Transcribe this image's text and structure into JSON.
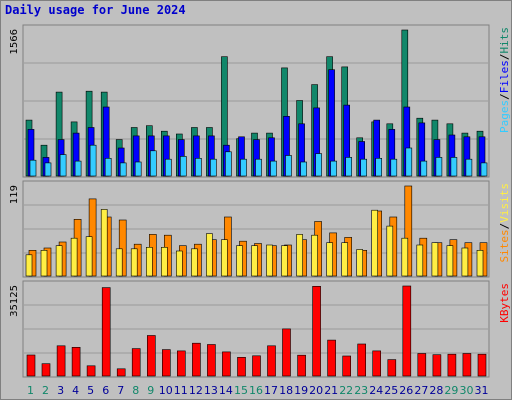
{
  "title": "Daily usage for June 2024",
  "colors": {
    "pages": "#33ccff",
    "files": "#0000ff",
    "hits": "#11876a",
    "visits": "#ffee44",
    "sites": "#ff8800",
    "kbytes": "#ff0000",
    "day_weekday": "#000099",
    "day_weekend": "#11876a",
    "plot_bg": "#c0c0c0"
  },
  "chart_data": [
    {
      "type": "bar",
      "title": "Hits / Files / Pages",
      "categories": [
        "1",
        "2",
        "3",
        "4",
        "5",
        "6",
        "7",
        "8",
        "9",
        "10",
        "11",
        "12",
        "13",
        "14",
        "15",
        "16",
        "17",
        "18",
        "19",
        "20",
        "21",
        "22",
        "23",
        "24",
        "25",
        "26",
        "27",
        "28",
        "29",
        "30",
        "31"
      ],
      "ymax_label": "1566",
      "ylim": [
        0,
        1566
      ],
      "series": [
        {
          "name": "Hits",
          "color": "#11876a",
          "values": [
            600,
            330,
            900,
            580,
            910,
            900,
            390,
            520,
            540,
            480,
            450,
            520,
            520,
            1280,
            400,
            460,
            460,
            1160,
            810,
            980,
            1280,
            1170,
            410,
            580,
            560,
            1566,
            620,
            600,
            560,
            460,
            480
          ]
        },
        {
          "name": "Files",
          "color": "#0000ff",
          "values": [
            500,
            200,
            390,
            460,
            520,
            740,
            300,
            430,
            430,
            430,
            390,
            430,
            430,
            330,
            420,
            390,
            410,
            640,
            560,
            730,
            1140,
            760,
            370,
            600,
            500,
            740,
            570,
            390,
            440,
            420,
            420
          ]
        },
        {
          "name": "Pages",
          "color": "#33ccff",
          "values": [
            170,
            140,
            230,
            160,
            330,
            190,
            140,
            150,
            270,
            180,
            210,
            190,
            180,
            260,
            180,
            180,
            160,
            220,
            150,
            240,
            160,
            200,
            180,
            190,
            180,
            300,
            160,
            200,
            200,
            180,
            140
          ]
        }
      ],
      "right_legend": [
        "Pages",
        "/",
        "Files",
        "/",
        "Hits"
      ]
    },
    {
      "type": "bar",
      "title": "Visits / Sites",
      "categories": [
        "1",
        "2",
        "3",
        "4",
        "5",
        "6",
        "7",
        "8",
        "9",
        "10",
        "11",
        "12",
        "13",
        "14",
        "15",
        "16",
        "17",
        "18",
        "19",
        "20",
        "21",
        "22",
        "23",
        "24",
        "25",
        "26",
        "27",
        "28",
        "29",
        "30",
        "31"
      ],
      "ymax_label": "119",
      "ylim": [
        0,
        119
      ],
      "series": [
        {
          "name": "Visits",
          "color": "#ffee44",
          "values": [
            28,
            34,
            40,
            50,
            52,
            88,
            36,
            36,
            38,
            38,
            33,
            36,
            56,
            48,
            40,
            40,
            41,
            40,
            55,
            54,
            44,
            44,
            35,
            87,
            66,
            50,
            41,
            44,
            40,
            37,
            34
          ]
        },
        {
          "name": "Sites",
          "color": "#ff8800",
          "values": [
            34,
            37,
            45,
            75,
            102,
            78,
            74,
            42,
            55,
            54,
            40,
            42,
            48,
            78,
            46,
            43,
            40,
            41,
            48,
            72,
            57,
            51,
            34,
            86,
            78,
            119,
            50,
            44,
            48,
            44,
            44
          ]
        }
      ],
      "right_legend": [
        "Sites",
        "/",
        "Visits"
      ]
    },
    {
      "type": "bar",
      "title": "KBytes",
      "categories": [
        "1",
        "2",
        "3",
        "4",
        "5",
        "6",
        "7",
        "8",
        "9",
        "10",
        "11",
        "12",
        "13",
        "14",
        "15",
        "16",
        "17",
        "18",
        "19",
        "20",
        "21",
        "22",
        "23",
        "24",
        "25",
        "26",
        "27",
        "28",
        "29",
        "30",
        "31"
      ],
      "ymax_label": "35125",
      "ylim": [
        0,
        35125
      ],
      "series": [
        {
          "name": "KBytes",
          "color": "#ff0000",
          "values": [
            8200,
            4800,
            11800,
            11200,
            4000,
            34500,
            2800,
            10700,
            15800,
            10300,
            9800,
            12800,
            12300,
            9400,
            7300,
            7900,
            11800,
            18400,
            8100,
            35000,
            14000,
            7800,
            12500,
            9800,
            6400,
            35125,
            8800,
            8300,
            8500,
            8800,
            8500
          ]
        }
      ],
      "right_legend": [
        "KBytes"
      ]
    }
  ],
  "days": [
    "1",
    "2",
    "3",
    "4",
    "5",
    "6",
    "7",
    "8",
    "9",
    "10",
    "11",
    "12",
    "13",
    "14",
    "15",
    "16",
    "17",
    "18",
    "19",
    "20",
    "21",
    "22",
    "23",
    "24",
    "25",
    "26",
    "27",
    "28",
    "29",
    "30",
    "31"
  ],
  "weekend_days": [
    "1",
    "2",
    "8",
    "9",
    "15",
    "16",
    "22",
    "23",
    "29",
    "30"
  ]
}
